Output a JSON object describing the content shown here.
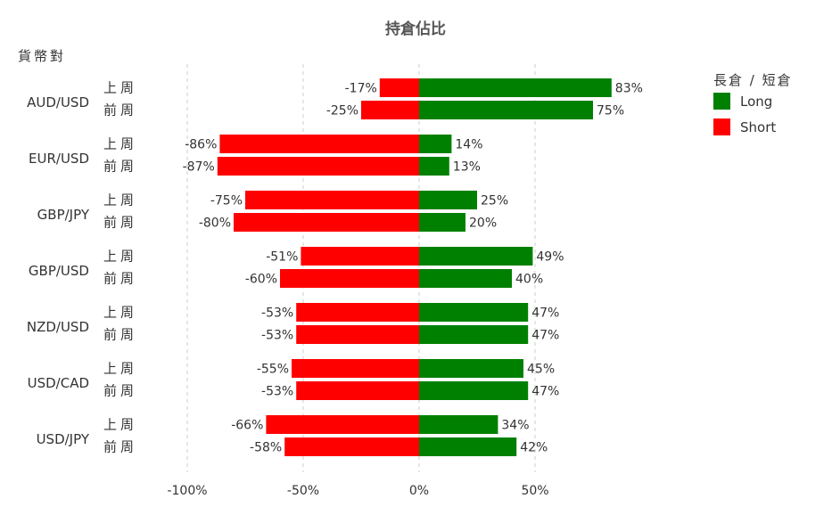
{
  "chart_data": {
    "type": "bar",
    "orientation": "horizontal",
    "title": "持倉佔比",
    "ylabel": "貨幣對",
    "xlim": [
      -100,
      80
    ],
    "xticks": [
      -100,
      -50,
      0,
      50
    ],
    "xtick_labels": [
      "-100%",
      "-50%",
      "0%",
      "50%"
    ],
    "grid": "vertical dashed",
    "legend": {
      "title": "長倉 / 短倉",
      "position": "top-right"
    },
    "period_labels": [
      "上周",
      "前周"
    ],
    "categories": [
      "AUD/USD",
      "EUR/USD",
      "GBP/JPY",
      "GBP/USD",
      "NZD/USD",
      "USD/CAD",
      "USD/JPY"
    ],
    "series": [
      {
        "name": "Long",
        "color": "#008000",
        "values": [
          [
            83,
            75
          ],
          [
            14,
            13
          ],
          [
            25,
            20
          ],
          [
            49,
            40
          ],
          [
            47,
            47
          ],
          [
            45,
            47
          ],
          [
            34,
            42
          ]
        ],
        "labels": [
          [
            "83%",
            "75%"
          ],
          [
            "14%",
            "13%"
          ],
          [
            "25%",
            "20%"
          ],
          [
            "49%",
            "40%"
          ],
          [
            "47%",
            "47%"
          ],
          [
            "45%",
            "47%"
          ],
          [
            "34%",
            "42%"
          ]
        ]
      },
      {
        "name": "Short",
        "color": "#ff0000",
        "values": [
          [
            -17,
            -25
          ],
          [
            -86,
            -87
          ],
          [
            -75,
            -80
          ],
          [
            -51,
            -60
          ],
          [
            -53,
            -53
          ],
          [
            -55,
            -53
          ],
          [
            -66,
            -58
          ]
        ],
        "labels": [
          [
            "-17%",
            "-25%"
          ],
          [
            "-86%",
            "-87%"
          ],
          [
            "-75%",
            "-80%"
          ],
          [
            "-51%",
            "-60%"
          ],
          [
            "-53%",
            "-53%"
          ],
          [
            "-55%",
            "-53%"
          ],
          [
            "-66%",
            "-58%"
          ]
        ]
      }
    ]
  }
}
